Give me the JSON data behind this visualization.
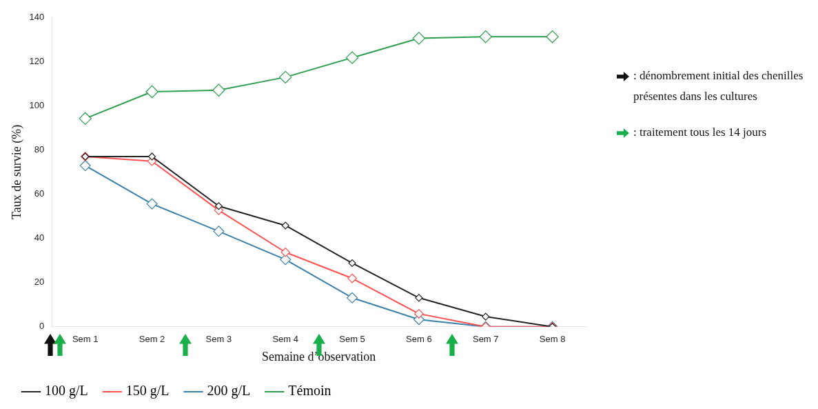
{
  "chart_data": {
    "type": "line",
    "xlabel": "Semaine d’observation",
    "ylabel": "Taux de survie (%)",
    "categories": [
      "Sem 1",
      "Sem 2",
      "Sem 3",
      "Sem 4",
      "Sem 5",
      "Sem 6",
      "Sem 7",
      "Sem 8"
    ],
    "series": [
      {
        "name": "100 g/L",
        "color": "#222222",
        "values": [
          77,
          77,
          54.6,
          45.8,
          28.8,
          13.1,
          4.6,
          0
        ]
      },
      {
        "name": "150 g/L",
        "color": "#ff5050",
        "values": [
          77,
          74.9,
          52.7,
          33.7,
          21.9,
          5.9,
          0,
          0
        ]
      },
      {
        "name": "200 g/L",
        "color": "#3a80a8",
        "values": [
          72.9,
          55.6,
          43.2,
          30.4,
          13.1,
          3.3,
          0,
          0
        ]
      },
      {
        "name": "Témoin",
        "color": "#2e9e4f",
        "values": [
          94.2,
          106.3,
          107,
          112.9,
          121.7,
          130.5,
          131.2,
          131.2
        ]
      }
    ],
    "ylim": [
      0,
      140
    ],
    "yticks": [
      0,
      20,
      40,
      60,
      80,
      100,
      120,
      140
    ],
    "grid": false,
    "legend": "bottom",
    "marker": "diamond",
    "line_style": "solid",
    "annotations": [
      ": dénombrement initial des chenilles présentes dans les cultures",
      ": traitement tous les 14 jours"
    ]
  }
}
